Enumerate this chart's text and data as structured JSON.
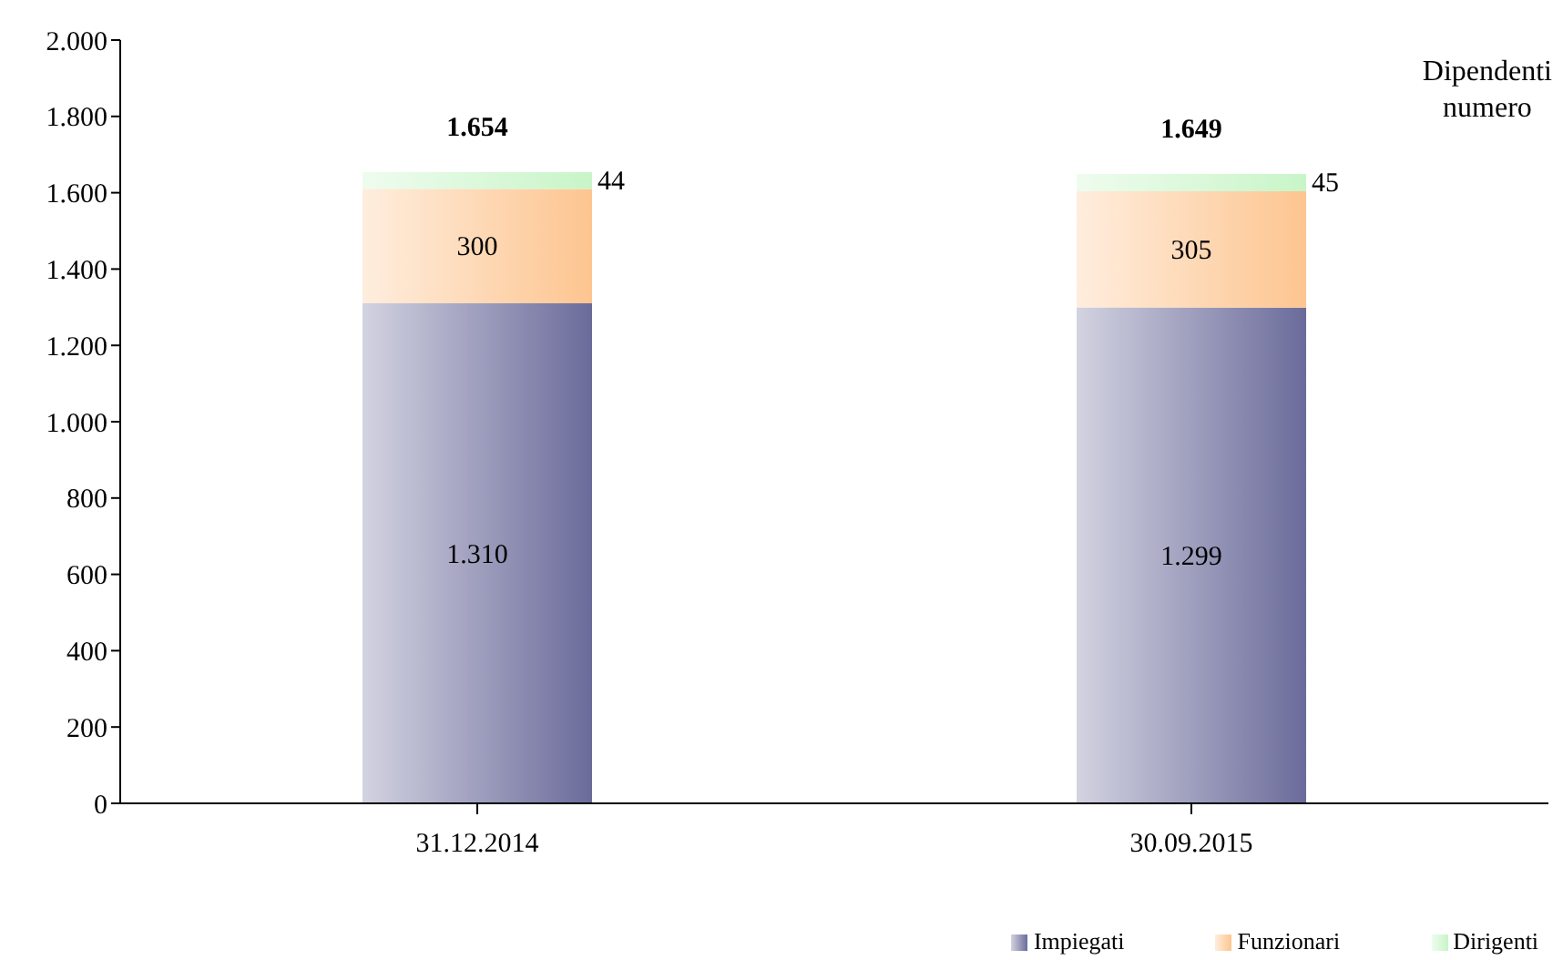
{
  "chart_data": {
    "type": "bar",
    "stacked": true,
    "ylabel": "Dipendenti\nnumero",
    "categories": [
      "31.12.2014",
      "30.09.2015"
    ],
    "series": [
      {
        "name": "Impiegati",
        "color": "#6b6b9b",
        "values": [
          1310,
          1299
        ],
        "value_labels": [
          "1.310",
          "1.299"
        ]
      },
      {
        "name": "Funzionari",
        "color": "#fdc590",
        "values": [
          300,
          305
        ],
        "value_labels": [
          "300",
          "305"
        ]
      },
      {
        "name": "Dirigenti",
        "color": "#c8f5c8",
        "values": [
          44,
          45
        ],
        "value_labels": [
          "44",
          "45"
        ]
      }
    ],
    "totals": [
      "1.654",
      "1.649"
    ],
    "ylim": [
      0,
      2000
    ],
    "yticks": [
      {
        "value": 0,
        "label": "0"
      },
      {
        "value": 200,
        "label": "200"
      },
      {
        "value": 400,
        "label": "400"
      },
      {
        "value": 600,
        "label": "600"
      },
      {
        "value": 800,
        "label": "800"
      },
      {
        "value": 1000,
        "label": "1.000"
      },
      {
        "value": 1200,
        "label": "1.200"
      },
      {
        "value": 1400,
        "label": "1.400"
      },
      {
        "value": 1600,
        "label": "1.600"
      },
      {
        "value": 1800,
        "label": "1.800"
      },
      {
        "value": 2000,
        "label": "2.000"
      }
    ],
    "grid": false,
    "legend": "bottom"
  }
}
